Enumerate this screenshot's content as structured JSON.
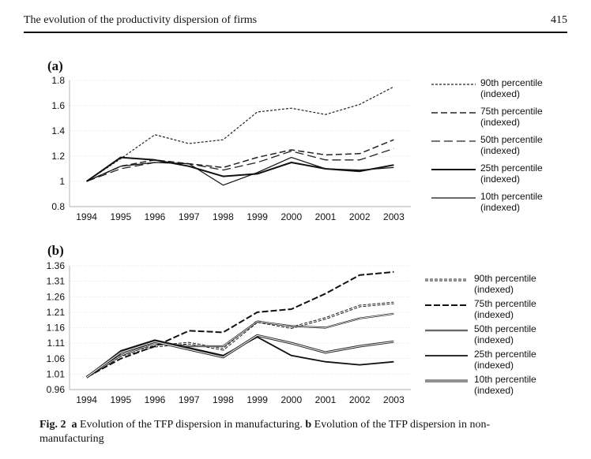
{
  "header": {
    "title": "The evolution of the productivity dispersion of firms",
    "page_number": "415"
  },
  "panels": [
    {
      "label": "(a)",
      "legend": [
        {
          "line1": "90th percentile",
          "line2": "(indexed)"
        },
        {
          "line1": "75th percentile",
          "line2": "(indexed)"
        },
        {
          "line1": "50th percentile",
          "line2": "(indexed)"
        },
        {
          "line1": "25th percentile",
          "line2": "(indexed)"
        },
        {
          "line1": "10th percentile",
          "line2": "(indexed)"
        }
      ]
    },
    {
      "label": "(b)",
      "legend": [
        {
          "line1": "90th percentile",
          "line2": "(indexed)"
        },
        {
          "line1": "75th percentile",
          "line2": "(indexed)"
        },
        {
          "line1": "50th percentile",
          "line2": "(indexed)"
        },
        {
          "line1": "25th percentile",
          "line2": "(indexed)"
        },
        {
          "line1": "10th percentile",
          "line2": "(indexed)"
        }
      ]
    }
  ],
  "caption": {
    "fig_label": "Fig. 2",
    "a_label": "a",
    "a_text": "Evolution of the TFP dispersion in manufacturing.",
    "b_label": "b",
    "b_text": "Evolution of the TFP dispersion in non-manufacturing"
  },
  "chart_data": [
    {
      "type": "line",
      "title": "(a)",
      "x": [
        "1994",
        "1995",
        "1996",
        "1997",
        "1998",
        "1999",
        "2000",
        "2001",
        "2002",
        "2003"
      ],
      "yticks": [
        "0.8",
        "1",
        "1.2",
        "1.4",
        "1.6",
        "1.8"
      ],
      "ylim": [
        0.8,
        1.8
      ],
      "series": [
        {
          "name": "90th percentile (indexed)",
          "values": [
            1.0,
            1.18,
            1.37,
            1.3,
            1.33,
            1.55,
            1.58,
            1.53,
            1.61,
            1.75
          ]
        },
        {
          "name": "75th percentile (indexed)",
          "values": [
            1.0,
            1.12,
            1.17,
            1.14,
            1.11,
            1.19,
            1.25,
            1.21,
            1.22,
            1.33
          ]
        },
        {
          "name": "50th percentile (indexed)",
          "values": [
            1.0,
            1.1,
            1.15,
            1.14,
            1.09,
            1.15,
            1.24,
            1.17,
            1.17,
            1.26
          ]
        },
        {
          "name": "25th percentile (indexed)",
          "values": [
            1.0,
            1.19,
            1.17,
            1.12,
            1.04,
            1.06,
            1.15,
            1.1,
            1.08,
            1.13
          ]
        },
        {
          "name": "10th percentile (indexed)",
          "values": [
            1.0,
            1.12,
            1.15,
            1.14,
            0.97,
            1.07,
            1.19,
            1.1,
            1.09,
            1.11
          ]
        }
      ]
    },
    {
      "type": "line",
      "title": "(b)",
      "x": [
        "1994",
        "1995",
        "1996",
        "1997",
        "1998",
        "1999",
        "2000",
        "2001",
        "2002",
        "2003"
      ],
      "yticks": [
        "0.96",
        "1.01",
        "1.06",
        "1.11",
        "1.16",
        "1.21",
        "1.26",
        "1.31",
        "1.36"
      ],
      "ylim": [
        0.96,
        1.36
      ],
      "series": [
        {
          "name": "90th percentile (indexed)",
          "values": [
            1.0,
            1.07,
            1.1,
            1.11,
            1.09,
            1.18,
            1.16,
            1.19,
            1.23,
            1.24
          ]
        },
        {
          "name": "75th percentile (indexed)",
          "values": [
            1.0,
            1.06,
            1.1,
            1.15,
            1.145,
            1.21,
            1.22,
            1.27,
            1.33,
            1.34
          ]
        },
        {
          "name": "50th percentile (indexed)",
          "values": [
            1.0,
            1.07,
            1.11,
            1.1,
            1.1,
            1.18,
            1.165,
            1.16,
            1.19,
            1.205
          ]
        },
        {
          "name": "25th percentile (indexed)",
          "values": [
            1.0,
            1.085,
            1.12,
            1.095,
            1.07,
            1.13,
            1.07,
            1.05,
            1.04,
            1.05
          ]
        },
        {
          "name": "10th percentile (indexed)",
          "values": [
            1.0,
            1.08,
            1.115,
            1.09,
            1.065,
            1.135,
            1.11,
            1.08,
            1.1,
            1.115
          ]
        }
      ]
    }
  ]
}
